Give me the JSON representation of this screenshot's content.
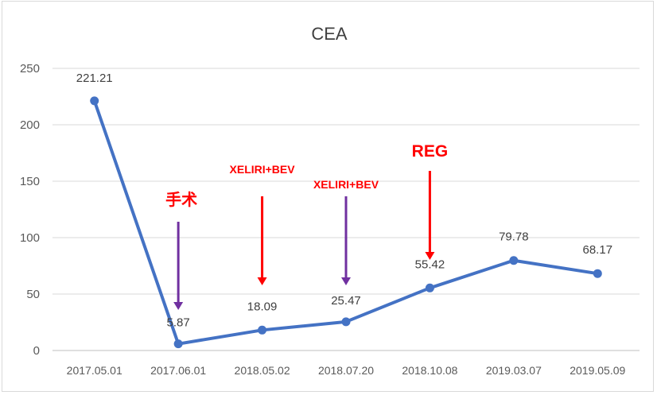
{
  "chart_data": {
    "type": "line",
    "title": "CEA",
    "xlabel": "",
    "ylabel": "",
    "ylim": [
      0,
      250
    ],
    "yticks": [
      0,
      50,
      100,
      150,
      200,
      250
    ],
    "grid": true,
    "legend": "none",
    "categories": [
      "2017.05.01",
      "2017.06.01",
      "2018.05.02",
      "2018.07.20",
      "2018.10.08",
      "2019.03.07",
      "2019.05.09"
    ],
    "series": [
      {
        "values": [
          221.21,
          5.87,
          18.09,
          25.47,
          55.42,
          79.78,
          68.17
        ],
        "color": "#4472c4"
      }
    ],
    "data_labels": [
      "221.21",
      "5.87",
      "18.09",
      "25.47",
      "55.42",
      "79.78",
      "68.17"
    ],
    "annotations": [
      {
        "text": "手术",
        "category_index": 1,
        "arrow_color": "#7030a0"
      },
      {
        "text": "XELIRI+BEV",
        "category_index": 2,
        "arrow_color": "#ff0000"
      },
      {
        "text": "XELIRI+BEV",
        "category_index": 3,
        "arrow_color": "#7030a0"
      },
      {
        "text": "REG",
        "category_index": 4,
        "arrow_color": "#ff0000"
      }
    ]
  }
}
